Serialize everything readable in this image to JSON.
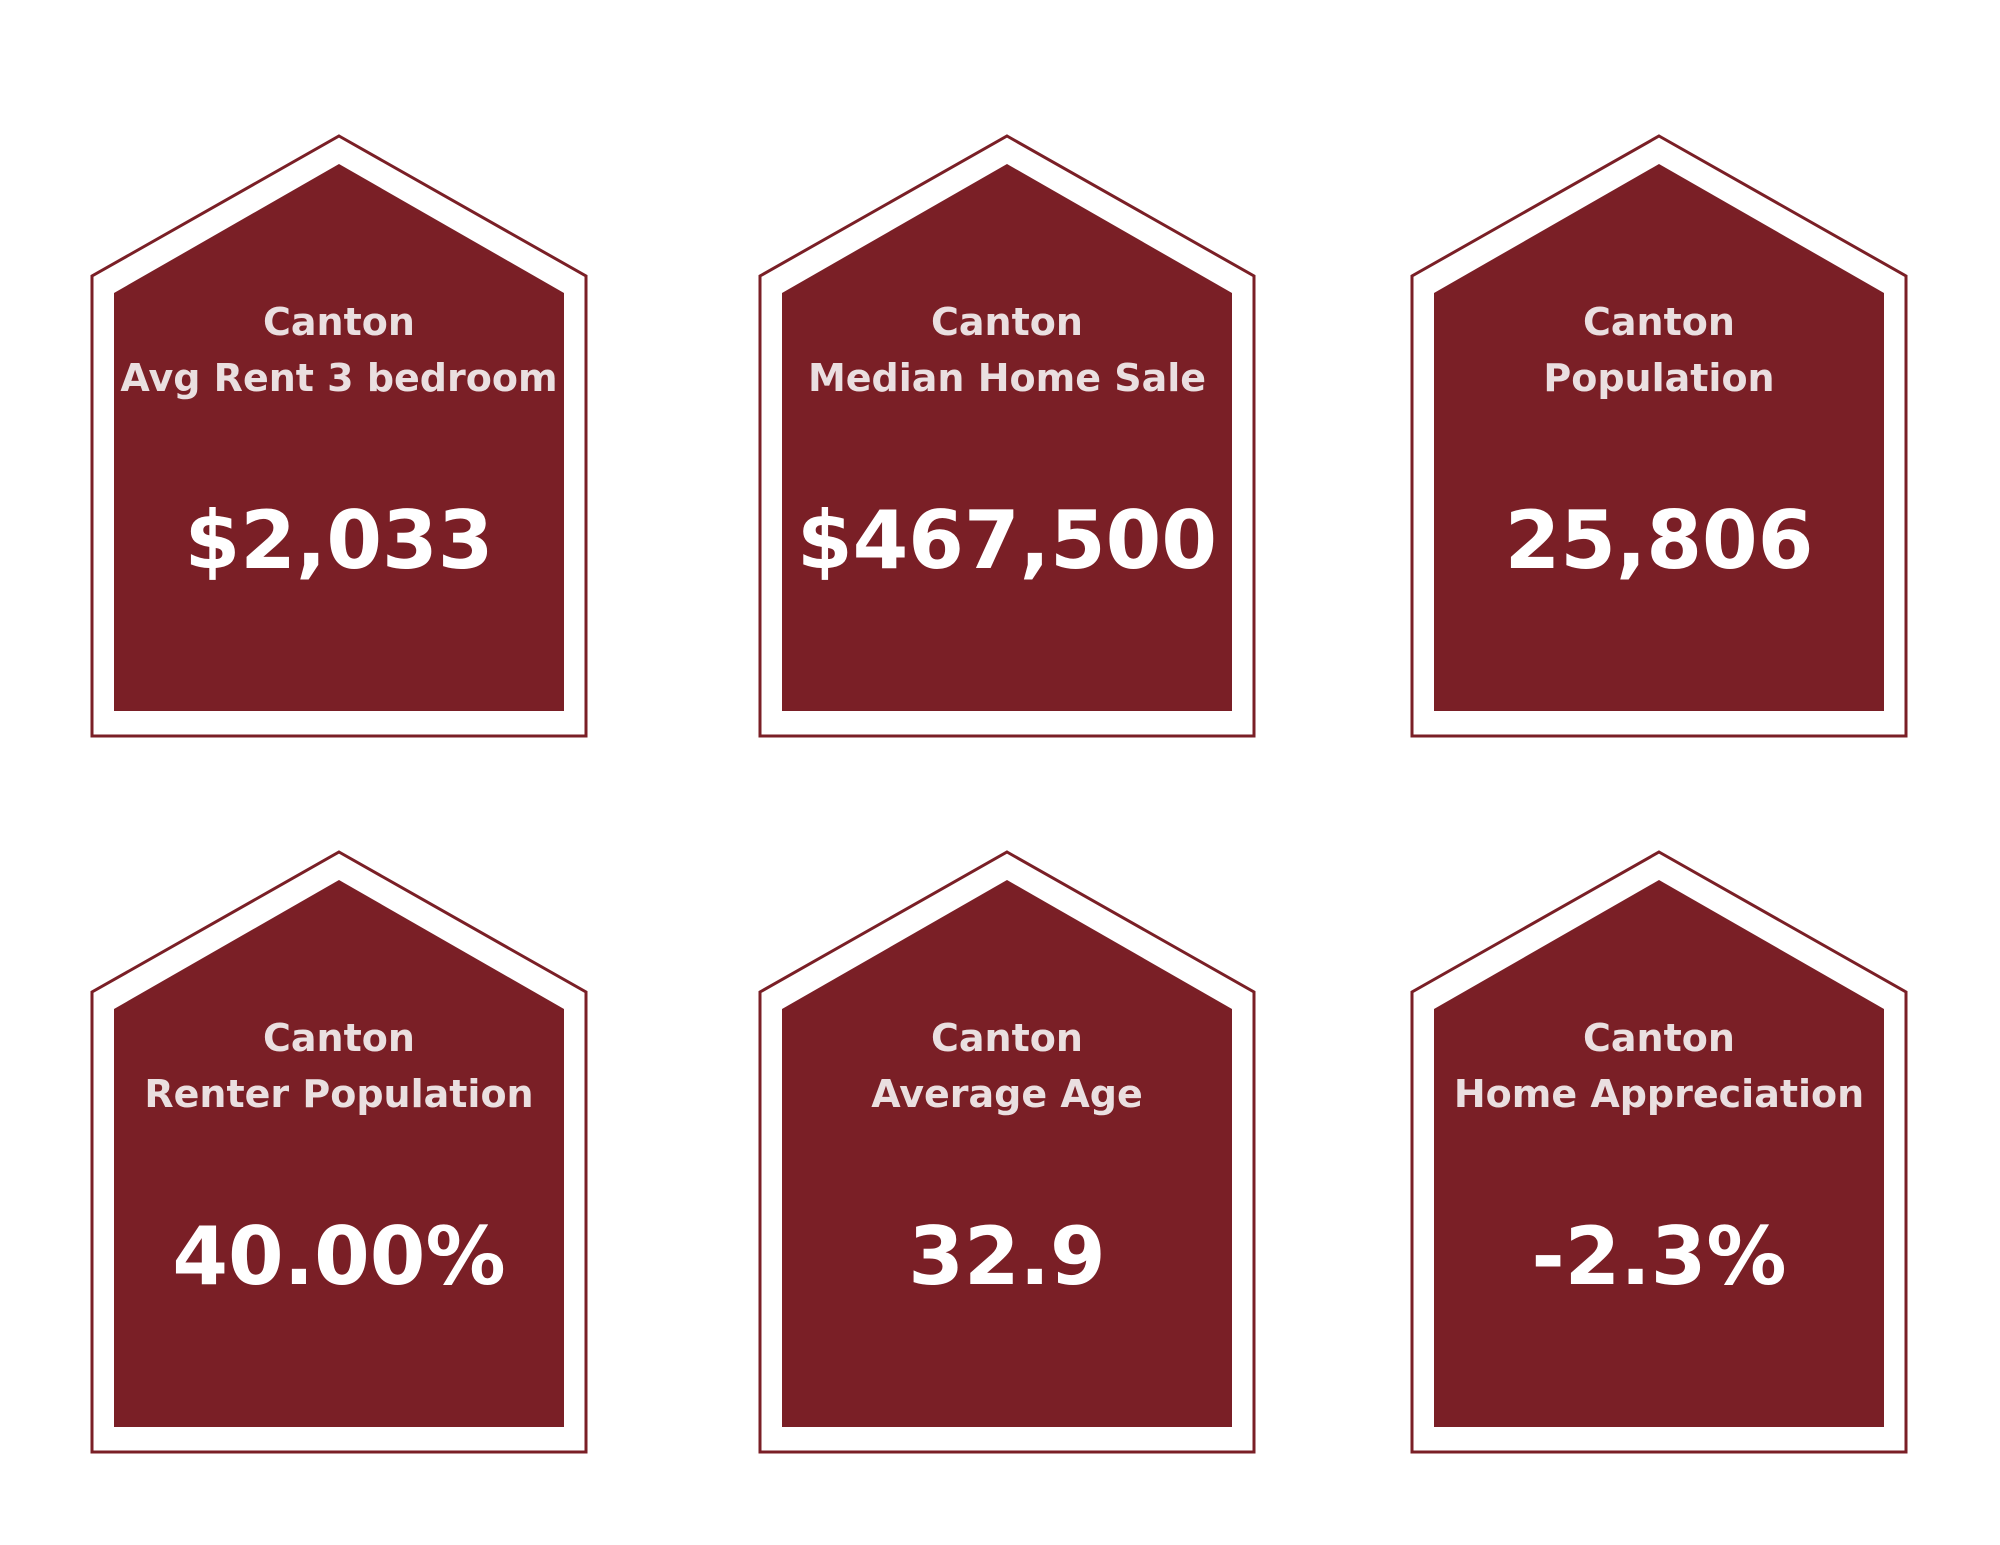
{
  "colors": {
    "card_fill": "#7a1f26",
    "card_outline": "#7a1f26",
    "background": "#ffffff",
    "title_text": "#eadfe0",
    "value_text": "#ffffff"
  },
  "cards": [
    {
      "city": "Canton",
      "metric": "Avg Rent 3 bedroom",
      "value": "$2,033"
    },
    {
      "city": "Canton",
      "metric": "Median Home Sale",
      "value": "$467,500"
    },
    {
      "city": "Canton",
      "metric": "Population",
      "value": "25,806"
    },
    {
      "city": "Canton",
      "metric": "Renter Population",
      "value": "40.00%"
    },
    {
      "city": "Canton",
      "metric": "Average Age",
      "value": "32.9"
    },
    {
      "city": "Canton",
      "metric": "Home Appreciation",
      "value": "-2.3%"
    }
  ]
}
